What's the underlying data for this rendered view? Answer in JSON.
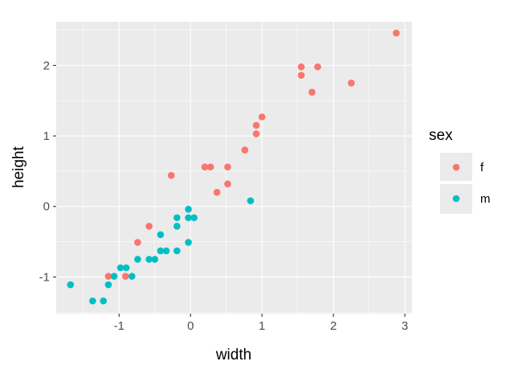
{
  "chart_data": {
    "type": "scatter",
    "title": "",
    "xlabel": "width",
    "ylabel": "height",
    "xlim": [
      -1.88,
      3.1
    ],
    "ylim": [
      -1.52,
      2.62
    ],
    "x_ticks": [
      -1,
      0,
      1,
      2,
      3
    ],
    "y_ticks": [
      -1,
      0,
      1,
      2
    ],
    "x_tick_labels": [
      "-1",
      "0",
      "1",
      "2",
      "3"
    ],
    "y_tick_labels": [
      "-1",
      "0",
      "1",
      "2"
    ],
    "grid": true,
    "legend": {
      "title": "sex",
      "position": "right"
    },
    "series": [
      {
        "name": "f",
        "color": "#F8766D",
        "points": [
          [
            2.88,
            2.46
          ],
          [
            1.55,
            1.98
          ],
          [
            1.78,
            1.98
          ],
          [
            1.55,
            1.86
          ],
          [
            2.25,
            1.75
          ],
          [
            1.7,
            1.62
          ],
          [
            1.0,
            1.27
          ],
          [
            0.92,
            1.15
          ],
          [
            0.92,
            1.03
          ],
          [
            0.76,
            0.8
          ],
          [
            -0.27,
            0.44
          ],
          [
            0.2,
            0.56
          ],
          [
            0.28,
            0.56
          ],
          [
            0.52,
            0.56
          ],
          [
            0.52,
            0.32
          ],
          [
            0.37,
            0.2
          ],
          [
            -0.58,
            -0.28
          ],
          [
            -0.74,
            -0.51
          ],
          [
            -1.15,
            -0.99
          ],
          [
            -0.91,
            -0.99
          ]
        ]
      },
      {
        "name": "m",
        "color": "#00BFC4",
        "points": [
          [
            0.84,
            0.08
          ],
          [
            -0.03,
            -0.04
          ],
          [
            -0.03,
            -0.16
          ],
          [
            0.05,
            -0.16
          ],
          [
            -0.19,
            -0.16
          ],
          [
            -0.19,
            -0.28
          ],
          [
            -0.42,
            -0.4
          ],
          [
            -0.03,
            -0.51
          ],
          [
            -0.42,
            -0.63
          ],
          [
            -0.34,
            -0.63
          ],
          [
            -0.19,
            -0.63
          ],
          [
            -0.74,
            -0.75
          ],
          [
            -0.58,
            -0.75
          ],
          [
            -0.5,
            -0.75
          ],
          [
            -0.98,
            -0.87
          ],
          [
            -0.9,
            -0.87
          ],
          [
            -1.07,
            -0.99
          ],
          [
            -0.82,
            -0.99
          ],
          [
            -1.15,
            -1.11
          ],
          [
            -1.68,
            -1.11
          ],
          [
            -1.37,
            -1.34
          ],
          [
            -1.22,
            -1.34
          ]
        ]
      }
    ]
  }
}
